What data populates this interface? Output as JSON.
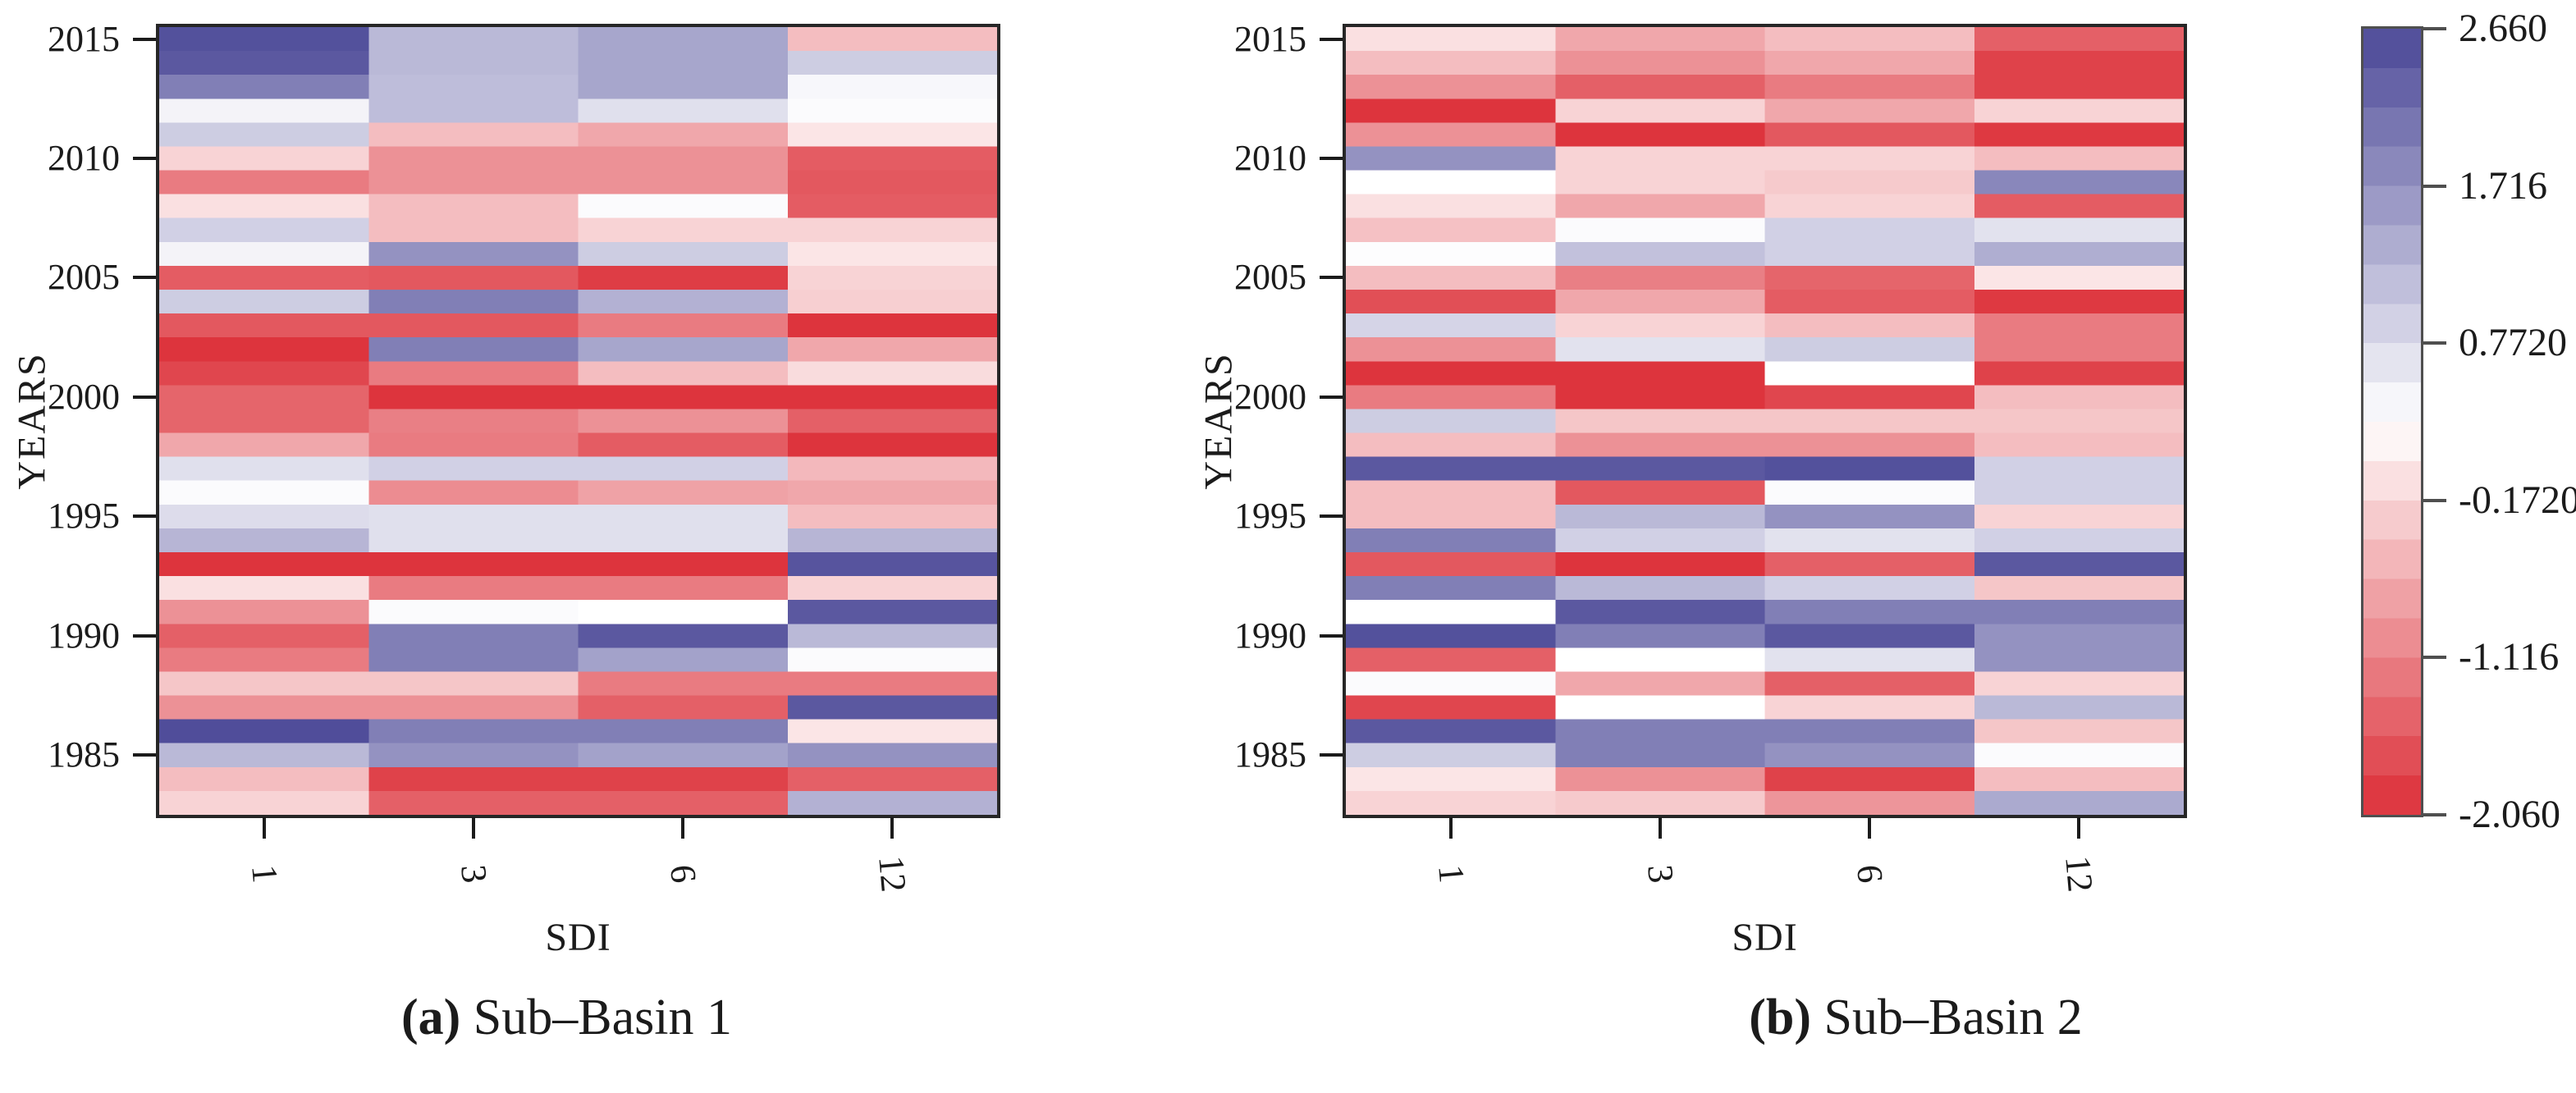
{
  "figure": {
    "kind": "dual SDI heatmap figure with shared diverging colorbar",
    "background": "#ffffff",
    "text_color": "#1b1b1b"
  },
  "panels": [
    {
      "id": "a",
      "caption_open": "(",
      "caption_letter": "a",
      "caption_close": ")",
      "caption_title": " Sub–Basin 1",
      "xlabel": "SDI",
      "ylabel": "YEARS"
    },
    {
      "id": "b",
      "caption_open": "(",
      "caption_letter": "b",
      "caption_close": ")",
      "caption_title": " Sub–Basin 2",
      "xlabel": "SDI",
      "ylabel": "YEARS"
    }
  ],
  "colorbar": {
    "tick_labels": [
      "2.660",
      "1.716",
      "0.7720",
      "-0.1720",
      "-1.116",
      "-2.060"
    ],
    "vmax": 2.66,
    "vmin": -2.06,
    "neutral_value": 0.3,
    "segments": 20,
    "color_min": "#dc2f38",
    "color_neutral": "#ffffff",
    "color_max": "#4b4897"
  },
  "chart_data": [
    {
      "type": "heatmap",
      "title": "(a) Sub–Basin 1",
      "xlabel": "SDI",
      "ylabel": "YEARS",
      "x_categories": [
        "1",
        "3",
        "6",
        "12"
      ],
      "y_years": [
        2015,
        2014,
        2013,
        2012,
        2011,
        2010,
        2009,
        2008,
        2007,
        2006,
        2005,
        2004,
        2003,
        2002,
        2001,
        2000,
        1999,
        1998,
        1997,
        1996,
        1995,
        1994,
        1993,
        1992,
        1991,
        1990,
        1989,
        1988,
        1987,
        1986,
        1985,
        1984,
        1983
      ],
      "y_tick_labels": [
        "2015",
        "2010",
        "2005",
        "2000",
        "1995",
        "1990",
        "1985"
      ],
      "value_range": [
        -2.06,
        2.66
      ],
      "values": [
        [
          2.55,
          1.2,
          1.45,
          -0.45
        ],
        [
          2.45,
          1.2,
          1.45,
          0.95
        ],
        [
          1.95,
          1.15,
          1.45,
          0.4
        ],
        [
          0.45,
          1.15,
          0.7,
          0.35
        ],
        [
          0.95,
          -0.45,
          -0.7,
          0.0
        ],
        [
          -0.2,
          -0.95,
          -0.95,
          -1.55
        ],
        [
          -1.2,
          -0.95,
          -0.95,
          -1.6
        ],
        [
          -0.05,
          -0.45,
          0.35,
          -1.55
        ],
        [
          0.9,
          -0.45,
          -0.2,
          -0.2
        ],
        [
          0.45,
          1.7,
          0.95,
          0.0
        ],
        [
          -1.55,
          -1.6,
          -1.9,
          -0.2
        ],
        [
          0.95,
          1.95,
          1.3,
          -0.25
        ],
        [
          -1.6,
          -1.6,
          -1.2,
          -2.0
        ],
        [
          -2.0,
          1.95,
          1.45,
          -0.7
        ],
        [
          -1.8,
          -1.2,
          -0.45,
          -0.1
        ],
        [
          -1.45,
          -2.0,
          -2.0,
          -2.0
        ],
        [
          -1.45,
          -1.15,
          -0.95,
          -1.5
        ],
        [
          -0.7,
          -1.2,
          -1.55,
          -2.0
        ],
        [
          0.7,
          0.9,
          0.9,
          -0.5
        ],
        [
          0.35,
          -1.0,
          -0.75,
          -0.7
        ],
        [
          0.75,
          0.7,
          0.7,
          -0.45
        ],
        [
          1.25,
          0.7,
          0.7,
          1.25
        ],
        [
          -2.0,
          -2.0,
          -2.0,
          2.5
        ],
        [
          -0.05,
          -1.2,
          -1.2,
          -0.2
        ],
        [
          -0.95,
          0.35,
          0.3,
          2.45
        ],
        [
          -1.5,
          1.95,
          2.45,
          1.2
        ],
        [
          -1.2,
          1.95,
          1.5,
          0.35
        ],
        [
          -0.35,
          -0.35,
          -1.2,
          -1.2
        ],
        [
          -0.95,
          -0.95,
          -1.5,
          2.45
        ],
        [
          2.6,
          1.95,
          1.95,
          0.0
        ],
        [
          1.2,
          1.7,
          1.5,
          1.7
        ],
        [
          -0.45,
          -1.85,
          -1.85,
          -1.5
        ],
        [
          -0.2,
          -1.5,
          -1.5,
          1.3
        ]
      ]
    },
    {
      "type": "heatmap",
      "title": "(b) Sub–Basin 2",
      "xlabel": "SDI",
      "ylabel": "YEARS",
      "x_categories": [
        "1",
        "3",
        "6",
        "12"
      ],
      "y_years": [
        2015,
        2014,
        2013,
        2012,
        2011,
        2010,
        2009,
        2008,
        2007,
        2006,
        2005,
        2004,
        2003,
        2002,
        2001,
        2000,
        1999,
        1998,
        1997,
        1996,
        1995,
        1994,
        1993,
        1992,
        1991,
        1990,
        1989,
        1988,
        1987,
        1986,
        1985,
        1984,
        1983
      ],
      "y_tick_labels": [
        "2015",
        "2010",
        "2005",
        "2000",
        "1995",
        "1990",
        "1985"
      ],
      "value_range": [
        -2.06,
        2.66
      ],
      "values": [
        [
          -0.05,
          -0.7,
          -0.45,
          -1.5
        ],
        [
          -0.45,
          -0.95,
          -0.7,
          -1.85
        ],
        [
          -0.95,
          -1.5,
          -1.2,
          -1.85
        ],
        [
          -2.0,
          -0.2,
          -0.7,
          -0.2
        ],
        [
          -0.95,
          -2.0,
          -1.6,
          -1.95
        ],
        [
          1.7,
          -0.2,
          -0.2,
          -0.45
        ],
        [
          0.3,
          -0.2,
          -0.3,
          1.85
        ],
        [
          -0.05,
          -0.7,
          -0.2,
          -1.55
        ],
        [
          -0.4,
          0.35,
          0.9,
          0.68
        ],
        [
          0.33,
          1.1,
          0.9,
          1.35
        ],
        [
          -0.45,
          -1.15,
          -1.45,
          0.0
        ],
        [
          -1.7,
          -0.7,
          -1.55,
          -1.95
        ],
        [
          0.85,
          -0.2,
          -0.45,
          -1.2
        ],
        [
          -0.95,
          0.68,
          0.95,
          -1.2
        ],
        [
          -2.0,
          -2.0,
          0.3,
          -1.85
        ],
        [
          -1.2,
          -2.0,
          -1.8,
          -0.45
        ],
        [
          0.95,
          -0.35,
          -0.35,
          -0.35
        ],
        [
          -0.45,
          -0.95,
          -0.95,
          -0.45
        ],
        [
          2.45,
          2.45,
          2.55,
          0.9
        ],
        [
          -0.45,
          -1.6,
          0.35,
          0.9
        ],
        [
          -0.45,
          1.2,
          1.7,
          -0.2
        ],
        [
          1.95,
          0.9,
          0.68,
          0.9
        ],
        [
          -1.6,
          -2.0,
          -1.5,
          2.45
        ],
        [
          1.95,
          1.2,
          0.9,
          -0.35
        ],
        [
          0.3,
          2.45,
          1.95,
          1.95
        ],
        [
          2.55,
          1.95,
          2.45,
          1.7
        ],
        [
          -1.5,
          0.3,
          0.68,
          1.7
        ],
        [
          0.35,
          -0.7,
          -1.5,
          -0.2
        ],
        [
          -1.8,
          0.3,
          -0.2,
          1.2
        ],
        [
          2.45,
          1.95,
          1.95,
          -0.35
        ],
        [
          0.95,
          1.95,
          1.7,
          0.35
        ],
        [
          0.0,
          -0.95,
          -1.85,
          -0.45
        ],
        [
          -0.2,
          -0.3,
          -0.9,
          1.4
        ]
      ]
    }
  ]
}
